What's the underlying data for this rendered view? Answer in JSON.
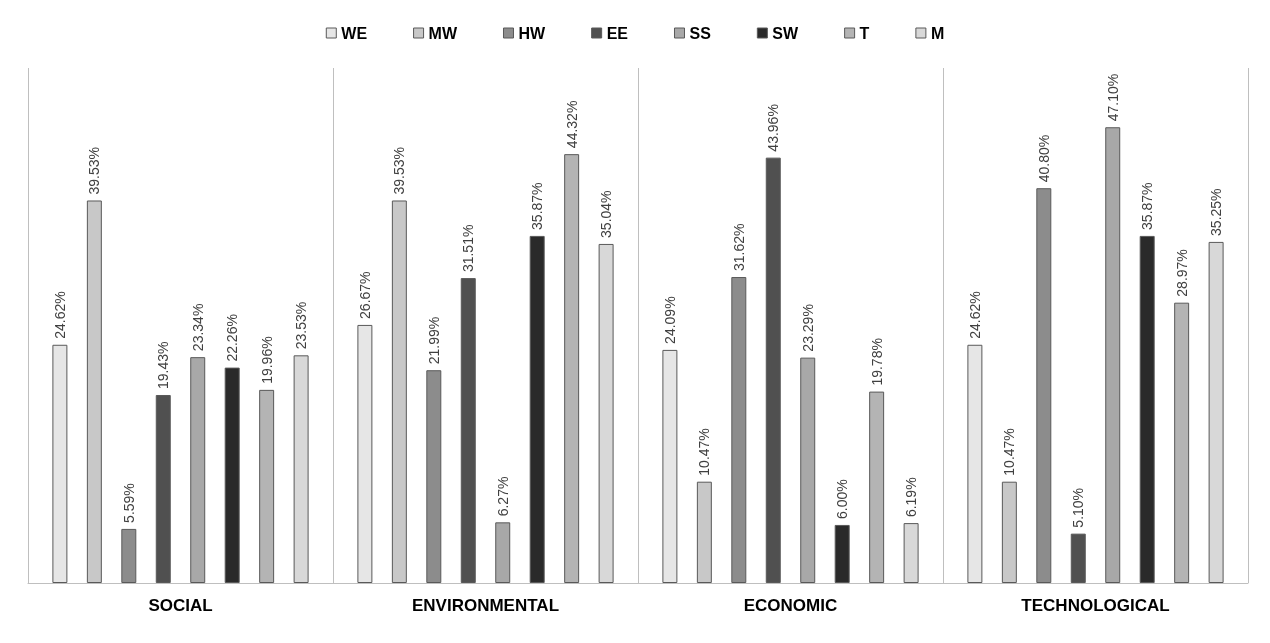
{
  "chart_data": {
    "type": "bar",
    "categories": [
      "SOCIAL",
      "ENVIRONMENTAL",
      "ECONOMIC",
      "TECHNOLOGICAL"
    ],
    "series": [
      {
        "name": "WE",
        "color": "#e6e6e6",
        "values": [
          24.62,
          26.67,
          24.09,
          24.62
        ],
        "value_labels": [
          "24.62%",
          "26.67%",
          "24.09%",
          "24.62%"
        ]
      },
      {
        "name": "MW",
        "color": "#c8c8c8",
        "values": [
          39.53,
          39.53,
          10.47,
          10.47
        ],
        "value_labels": [
          "39.53%",
          "39.53%",
          "10.47%",
          "10.47%"
        ]
      },
      {
        "name": "HW",
        "color": "#8c8c8c",
        "values": [
          5.59,
          21.99,
          31.62,
          40.8
        ],
        "value_labels": [
          "5.59%",
          "21.99%",
          "31.62%",
          "40.80%"
        ]
      },
      {
        "name": "EE",
        "color": "#505050",
        "values": [
          19.43,
          31.51,
          43.96,
          5.1
        ],
        "value_labels": [
          "19.43%",
          "31.51%",
          "43.96%",
          "5.10%"
        ]
      },
      {
        "name": "SS",
        "color": "#a8a8a8",
        "values": [
          23.34,
          6.27,
          23.29,
          47.1
        ],
        "value_labels": [
          "23.34%",
          "6.27%",
          "23.29%",
          "47.10%"
        ]
      },
      {
        "name": "SW",
        "color": "#2a2a2a",
        "values": [
          22.26,
          35.87,
          6.0,
          35.87
        ],
        "value_labels": [
          "22.26%",
          "35.87%",
          "6.00%",
          "35.87%"
        ]
      },
      {
        "name": "T",
        "color": "#b4b4b4",
        "values": [
          19.96,
          44.32,
          19.78,
          28.97
        ],
        "value_labels": [
          "19.96%",
          "44.32%",
          "19.78%",
          "28.97%"
        ]
      },
      {
        "name": "M",
        "color": "#d8d8d8",
        "values": [
          23.53,
          35.04,
          6.19,
          35.25
        ],
        "value_labels": [
          "23.53%",
          "35.04%",
          "6.19%",
          "35.25%"
        ]
      }
    ],
    "legend": "top",
    "grid": "x",
    "tick_labels": "x"
  }
}
